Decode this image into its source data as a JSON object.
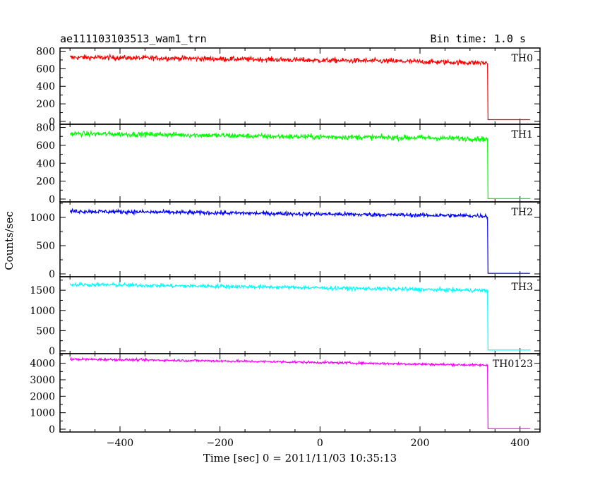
{
  "header": {
    "left_title": "ae111103103513_wam1_trn",
    "right_title": "Bin time: 1.0 s"
  },
  "chart_data": {
    "type": "line",
    "title": "ae111103103513_wam1_trn",
    "subtitle": "Bin time: 1.0 s",
    "xlabel": "Time [sec] 0 = 2011/11/03 10:35:13",
    "ylabel": "Counts/sec",
    "xlim": [
      -520,
      440
    ],
    "x_ticks": [
      -400,
      -200,
      0,
      200,
      400
    ],
    "x_tick_labels": [
      "−400",
      "−200",
      "0",
      "200",
      "400"
    ],
    "drop_time": 335,
    "x_start": -500,
    "x_end": 420,
    "grid": false,
    "panels": [
      {
        "name": "TH0",
        "color": "#ff0000",
        "ylim": [
          0,
          820
        ],
        "yticks": [
          0,
          200,
          400,
          600,
          800
        ],
        "series": {
          "x": [
            -500,
            -400,
            -300,
            -200,
            -100,
            0,
            100,
            200,
            300,
            335,
            336,
            420
          ],
          "values": [
            730,
            725,
            720,
            712,
            705,
            695,
            690,
            680,
            670,
            665,
            20,
            20
          ]
        },
        "noise": 28
      },
      {
        "name": "TH1",
        "color": "#00ff00",
        "ylim": [
          0,
          820
        ],
        "yticks": [
          0,
          200,
          400,
          600,
          800
        ],
        "series": {
          "x": [
            -500,
            -400,
            -300,
            -200,
            -100,
            0,
            100,
            200,
            300,
            335,
            336,
            420
          ],
          "values": [
            730,
            725,
            720,
            710,
            700,
            695,
            690,
            685,
            675,
            670,
            5,
            5
          ]
        },
        "noise": 28
      },
      {
        "name": "TH2",
        "color": "#0000ff",
        "ylim": [
          0,
          1250
        ],
        "yticks": [
          0,
          500,
          1000
        ],
        "series": {
          "x": [
            -500,
            -400,
            -300,
            -200,
            -100,
            0,
            100,
            200,
            300,
            335,
            336,
            420
          ],
          "values": [
            1110,
            1100,
            1090,
            1080,
            1070,
            1060,
            1050,
            1040,
            1030,
            1025,
            10,
            10
          ]
        },
        "noise": 35
      },
      {
        "name": "TH3",
        "color": "#00ffff",
        "ylim": [
          0,
          1800
        ],
        "yticks": [
          0,
          500,
          1000,
          1500
        ],
        "series": {
          "x": [
            -500,
            -400,
            -300,
            -200,
            -100,
            0,
            100,
            200,
            300,
            335,
            336,
            420
          ],
          "values": [
            1640,
            1630,
            1610,
            1600,
            1580,
            1560,
            1540,
            1520,
            1500,
            1495,
            20,
            20
          ]
        },
        "noise": 45
      },
      {
        "name": "TH0123",
        "color": "#ff00ff",
        "ylim": [
          0,
          4500
        ],
        "yticks": [
          0,
          1000,
          2000,
          3000,
          4000
        ],
        "series": {
          "x": [
            -500,
            -400,
            -300,
            -200,
            -100,
            0,
            100,
            200,
            300,
            335,
            336,
            420
          ],
          "values": [
            4250,
            4220,
            4180,
            4140,
            4100,
            4050,
            4000,
            3950,
            3900,
            3880,
            30,
            30
          ]
        },
        "noise": 70
      }
    ]
  }
}
